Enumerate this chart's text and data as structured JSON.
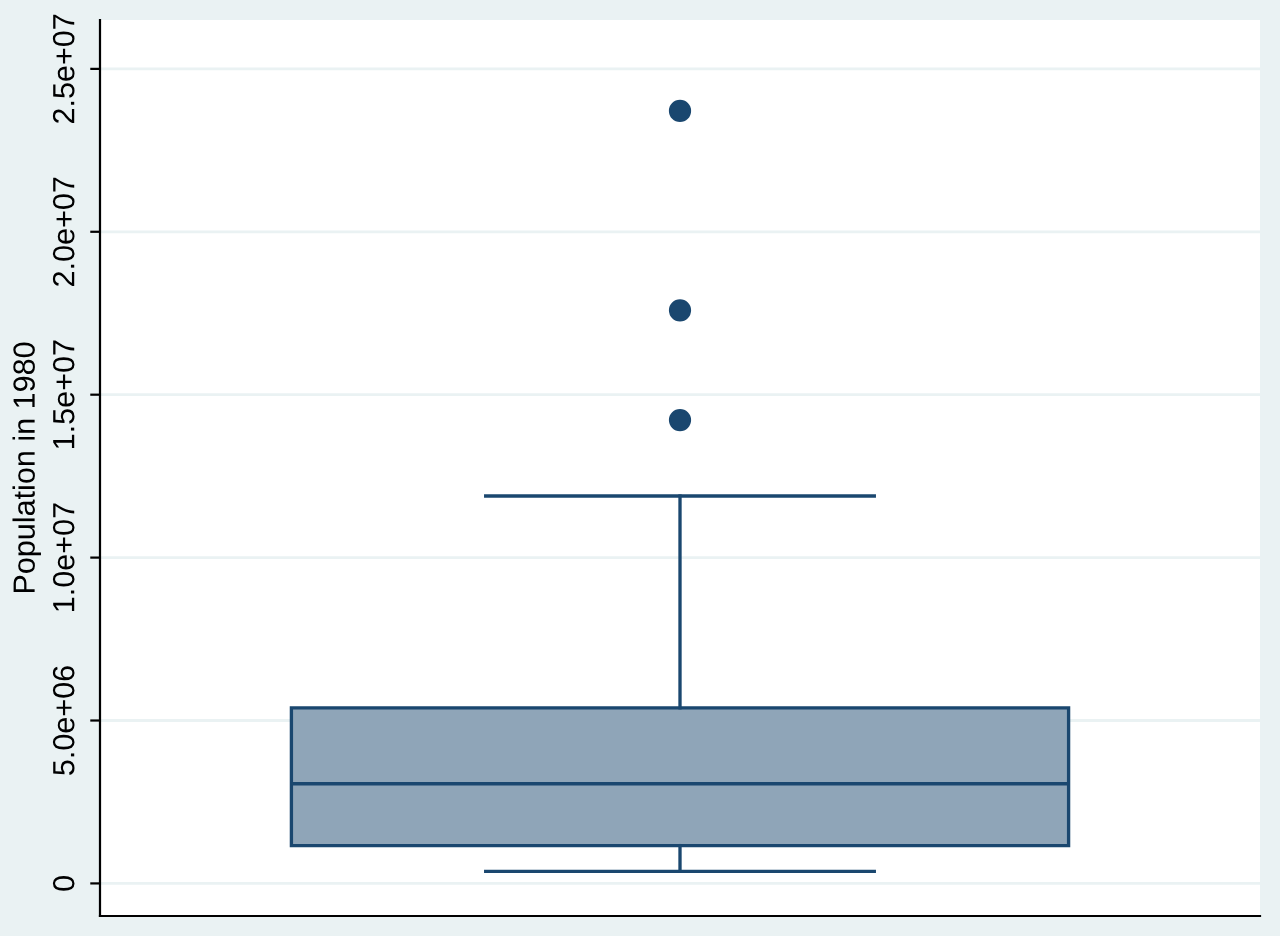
{
  "chart_data": {
    "type": "box",
    "ylabel": "Population in 1980",
    "categories": [
      null
    ],
    "boxes": [
      {
        "low": 370000,
        "q1": 1160000,
        "median": 3060000,
        "q3": 5390000,
        "high": 11890000,
        "outliers": [
          14220000,
          17590000,
          23710000
        ]
      }
    ],
    "color": "#8fa5b8",
    "ylim": [
      -1000000,
      26500000
    ],
    "yticks": [
      0,
      {
        "value": 5000000,
        "label": "5.0e+06"
      },
      {
        "value": 10000000,
        "label": "1.0e+07"
      },
      {
        "value": 15000000,
        "label": "1.5e+07"
      },
      {
        "value": 20000000,
        "label": "2.0e+07"
      },
      {
        "value": 25000000,
        "label": "2.5e+07"
      }
    ],
    "grid": "y"
  }
}
